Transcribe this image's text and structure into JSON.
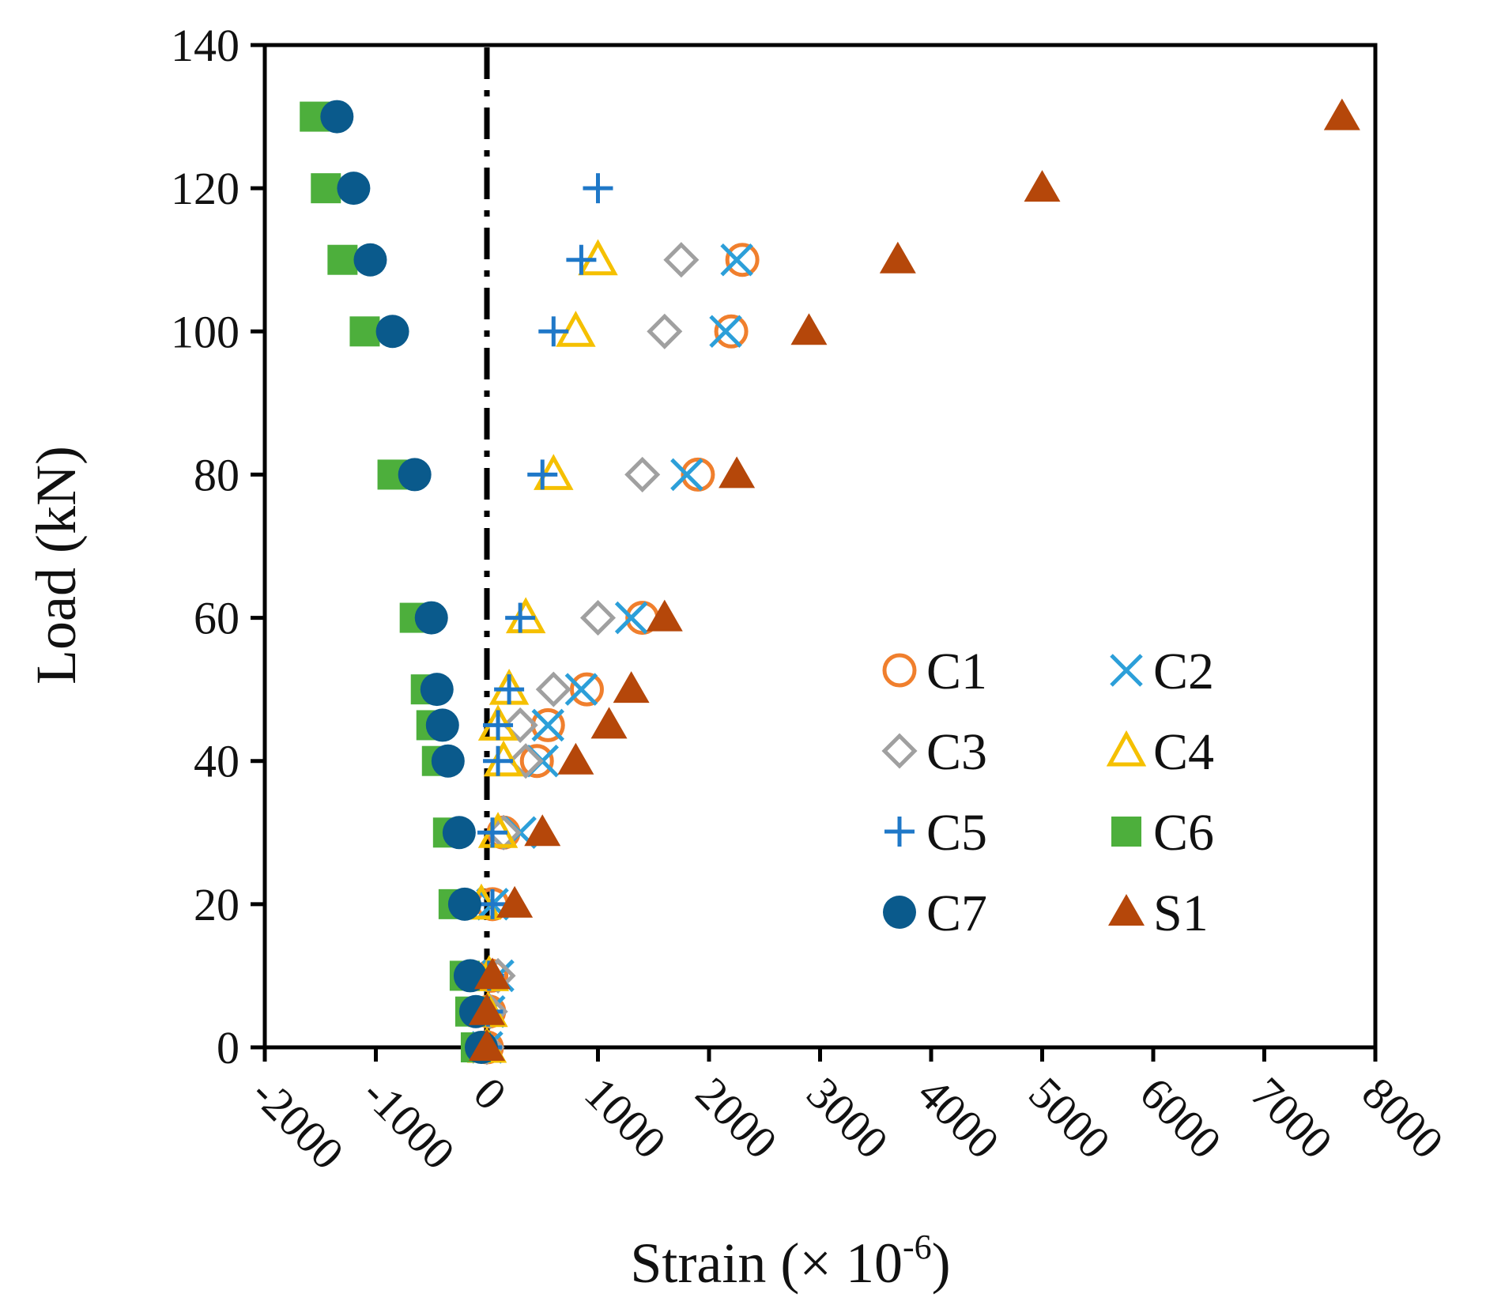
{
  "chart_data": {
    "type": "scatter",
    "title": "",
    "xlabel": "Strain (× 10",
    "xlabel_sup": "-6",
    "xlabel_close": ")",
    "ylabel": "Load (kN)",
    "xlim": [
      -2000,
      8000
    ],
    "ylim": [
      0,
      140
    ],
    "x_ticks": [
      -2000,
      -1000,
      0,
      1000,
      2000,
      3000,
      4000,
      5000,
      6000,
      7000,
      8000
    ],
    "x_tick_labels": [
      "-2000",
      "-1000",
      "0",
      "1000",
      "2000",
      "3000",
      "4000",
      "5000",
      "6000",
      "7000",
      "8000"
    ],
    "y_ticks": [
      0,
      20,
      40,
      60,
      80,
      100,
      120,
      140
    ],
    "y_tick_labels": [
      "0",
      "20",
      "40",
      "60",
      "80",
      "100",
      "120",
      "140"
    ],
    "grid": false,
    "reference_line": {
      "x": 0,
      "style": "dash-dot",
      "color": "#000000"
    },
    "legend": {
      "position": "lower-right",
      "columns": 2
    },
    "series": [
      {
        "name": "C1",
        "marker": "open-circle",
        "color": "#F07F2D",
        "points": [
          [
            0,
            0
          ],
          [
            20,
            5
          ],
          [
            40,
            10
          ],
          [
            50,
            20
          ],
          [
            150,
            30
          ],
          [
            450,
            40
          ],
          [
            550,
            45
          ],
          [
            900,
            50
          ],
          [
            1400,
            60
          ],
          [
            1900,
            80
          ],
          [
            2200,
            100
          ],
          [
            2300,
            110
          ]
        ]
      },
      {
        "name": "C2",
        "marker": "x",
        "color": "#2C9FD9",
        "points": [
          [
            0,
            0
          ],
          [
            20,
            5
          ],
          [
            100,
            10
          ],
          [
            50,
            20
          ],
          [
            300,
            30
          ],
          [
            500,
            40
          ],
          [
            550,
            45
          ],
          [
            850,
            50
          ],
          [
            1300,
            60
          ],
          [
            1800,
            80
          ],
          [
            2150,
            100
          ],
          [
            2250,
            110
          ]
        ]
      },
      {
        "name": "C3",
        "marker": "open-diamond",
        "color": "#A0A0A0",
        "points": [
          [
            0,
            0
          ],
          [
            30,
            5
          ],
          [
            100,
            10
          ],
          [
            150,
            30
          ],
          [
            350,
            40
          ],
          [
            300,
            45
          ],
          [
            600,
            50
          ],
          [
            1000,
            60
          ],
          [
            1400,
            80
          ],
          [
            1600,
            100
          ],
          [
            1750,
            110
          ]
        ]
      },
      {
        "name": "C4",
        "marker": "open-triangle",
        "color": "#F5C000",
        "points": [
          [
            0,
            0
          ],
          [
            10,
            5
          ],
          [
            20,
            10
          ],
          [
            -50,
            20
          ],
          [
            100,
            30
          ],
          [
            150,
            40
          ],
          [
            100,
            45
          ],
          [
            200,
            50
          ],
          [
            350,
            60
          ],
          [
            600,
            80
          ],
          [
            800,
            100
          ],
          [
            1000,
            110
          ]
        ]
      },
      {
        "name": "C5",
        "marker": "plus",
        "color": "#1F78C8",
        "points": [
          [
            0,
            0
          ],
          [
            10,
            5
          ],
          [
            20,
            10
          ],
          [
            50,
            20
          ],
          [
            50,
            30
          ],
          [
            100,
            40
          ],
          [
            100,
            45
          ],
          [
            200,
            50
          ],
          [
            300,
            60
          ],
          [
            500,
            80
          ],
          [
            600,
            100
          ],
          [
            850,
            110
          ],
          [
            1000,
            120
          ]
        ]
      },
      {
        "name": "C6",
        "marker": "square",
        "color": "#4DAF3C",
        "points": [
          [
            -100,
            0
          ],
          [
            -150,
            5
          ],
          [
            -200,
            10
          ],
          [
            -300,
            20
          ],
          [
            -350,
            30
          ],
          [
            -450,
            40
          ],
          [
            -500,
            45
          ],
          [
            -550,
            50
          ],
          [
            -650,
            60
          ],
          [
            -850,
            80
          ],
          [
            -1100,
            100
          ],
          [
            -1300,
            110
          ],
          [
            -1450,
            120
          ],
          [
            -1550,
            130
          ]
        ]
      },
      {
        "name": "C7",
        "marker": "filled-circle",
        "color": "#0A5A8C",
        "points": [
          [
            -50,
            0
          ],
          [
            -100,
            5
          ],
          [
            -150,
            10
          ],
          [
            -200,
            20
          ],
          [
            -250,
            30
          ],
          [
            -350,
            40
          ],
          [
            -400,
            45
          ],
          [
            -450,
            50
          ],
          [
            -500,
            60
          ],
          [
            -650,
            80
          ],
          [
            -850,
            100
          ],
          [
            -1050,
            110
          ],
          [
            -1200,
            120
          ],
          [
            -1350,
            130
          ]
        ]
      },
      {
        "name": "S1",
        "marker": "filled-triangle",
        "color": "#B5470A",
        "points": [
          [
            0,
            0
          ],
          [
            0,
            5
          ],
          [
            50,
            10
          ],
          [
            250,
            20
          ],
          [
            500,
            30
          ],
          [
            800,
            40
          ],
          [
            1100,
            45
          ],
          [
            1300,
            50
          ],
          [
            1600,
            60
          ],
          [
            2250,
            80
          ],
          [
            2900,
            100
          ],
          [
            3700,
            110
          ],
          [
            5000,
            120
          ],
          [
            7700,
            130
          ]
        ]
      }
    ]
  }
}
